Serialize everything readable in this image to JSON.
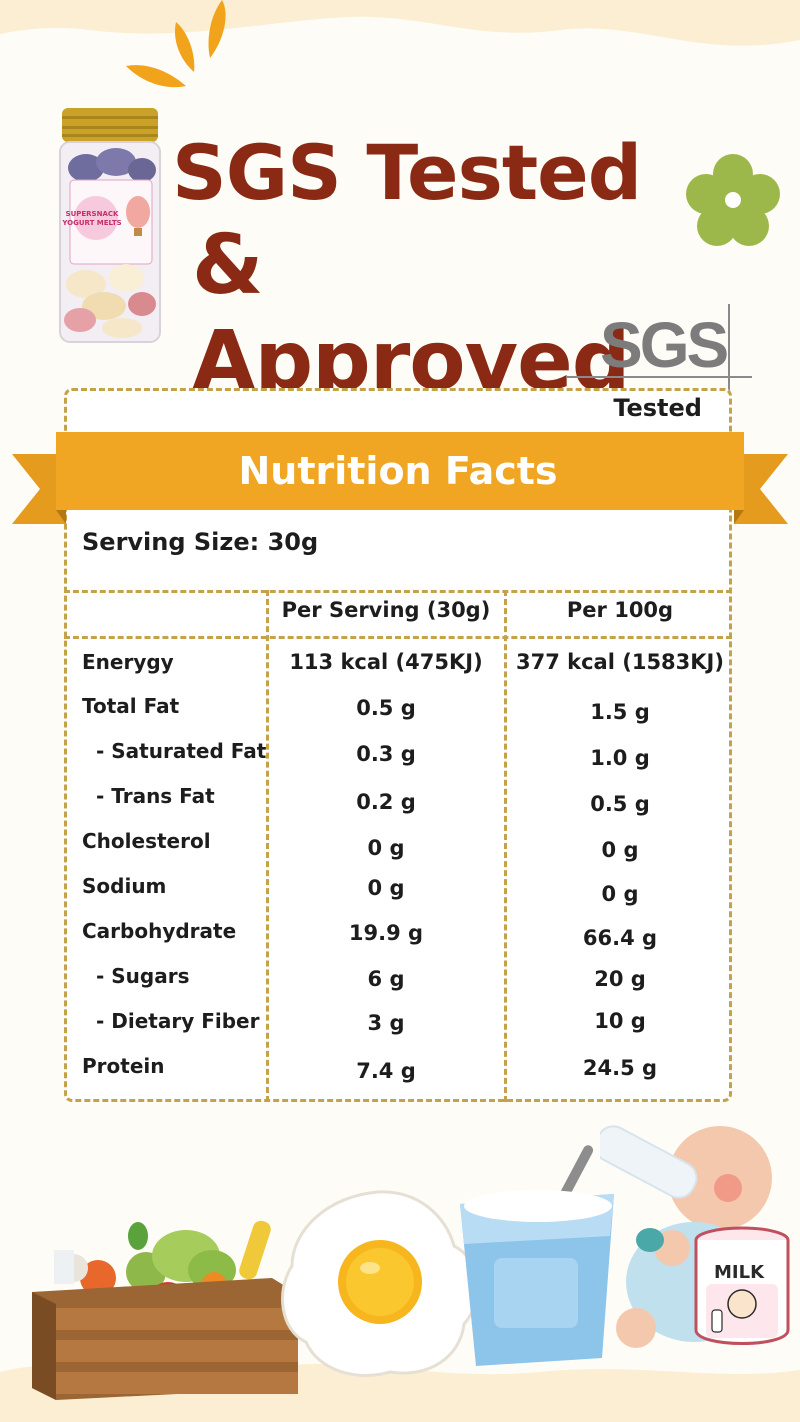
{
  "headline": {
    "line1": "SGS Tested",
    "line2": "& Approved"
  },
  "sgs_logo": "SGS",
  "tested_label": "Tested",
  "nutrition": {
    "title": "Nutrition Facts",
    "serving_size": "Serving Size: 30g",
    "columns": [
      "Per Serving (30g)",
      "Per 100g"
    ],
    "rows": [
      {
        "label": "Enerygy",
        "per_serving": "113 kcal (475KJ)",
        "per_100g": "377 kcal (1583KJ)"
      },
      {
        "label": "Total Fat",
        "per_serving": "0.5 g",
        "per_100g": "1.5 g"
      },
      {
        "label": "- Saturated Fat",
        "per_serving": "0.3 g",
        "per_100g": "1.0 g"
      },
      {
        "label": "- Trans Fat",
        "per_serving": "0.2 g",
        "per_100g": "0.5 g"
      },
      {
        "label": "Cholesterol",
        "per_serving": "0 g",
        "per_100g": "0 g"
      },
      {
        "label": "Sodium",
        "per_serving": "0 g",
        "per_100g": "0 g"
      },
      {
        "label": "Carbohydrate",
        "per_serving": "19.9 g",
        "per_100g": "66.4 g"
      },
      {
        "label": "- Sugars",
        "per_serving": "6 g",
        "per_100g": "20 g"
      },
      {
        "label": "- Dietary Fiber",
        "per_serving": "3 g",
        "per_100g": "10 g"
      },
      {
        "label": "Protein",
        "per_serving": "7.4 g",
        "per_100g": "24.5 g"
      }
    ]
  },
  "jar_label": {
    "line1": "SUPERSNACK",
    "line2": "YOGURT MELTS"
  },
  "milk_label": "MILK",
  "colors": {
    "headline": "#8b2a14",
    "banner": "#f0a523",
    "border": "#c4a24a",
    "flower_green": "#9cb84a",
    "sunburst": "#f2a31c"
  },
  "icons": [
    "sunburst-icon",
    "flower-icon",
    "snack-jar-image",
    "vegetable-crate-image",
    "fried-egg-image",
    "yogurt-cup-image",
    "baby-bottle-image",
    "milk-can-image"
  ]
}
